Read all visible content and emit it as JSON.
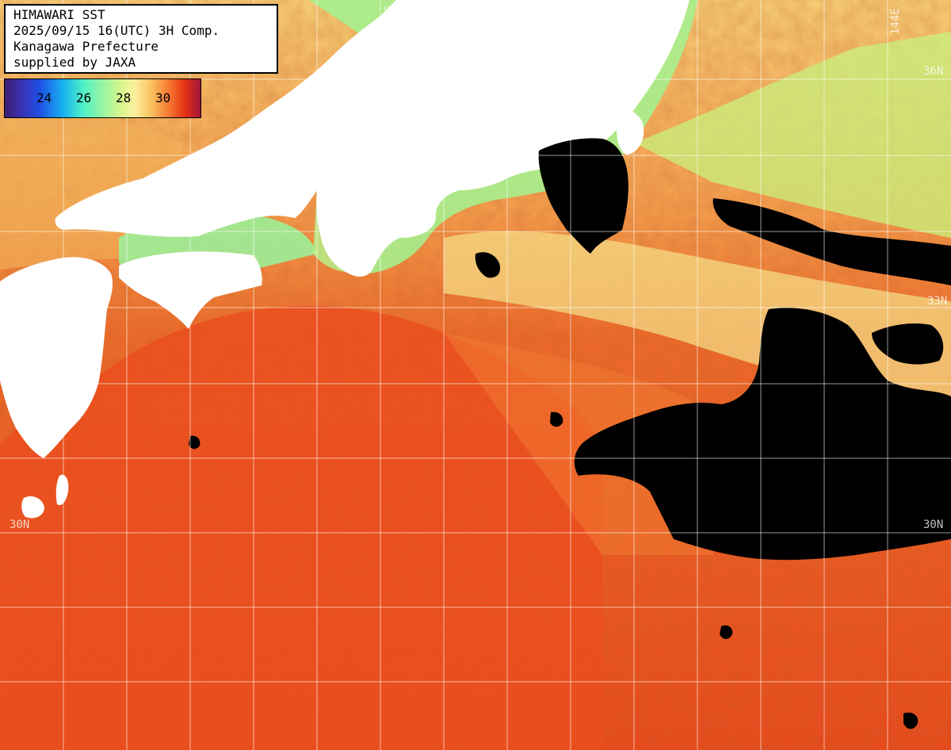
{
  "title": {
    "line1": "HIMAWARI SST",
    "line2": "2025/09/15 16(UTC) 3H Comp.",
    "line3": "Kanagawa Prefecture",
    "line4": "supplied by JAXA"
  },
  "colorbar": {
    "ticks": [
      "24",
      "26",
      "28",
      "30"
    ],
    "min_value": 22,
    "max_value": 32,
    "colors": [
      "#3a1f6e",
      "#1e50e6",
      "#18b4f0",
      "#4ef0c8",
      "#dcf58c",
      "#fac864",
      "#f57832",
      "#e63214",
      "#a0143c"
    ]
  },
  "grid_labels": {
    "lat_36": "36N",
    "lat_33": "33N",
    "lat_30_left": "30N",
    "lat_30_right": "30N",
    "lon_144": "144E",
    "lon_138": "138E"
  },
  "colors": {
    "land": "#ffffff",
    "cloud": "#000000",
    "grid": "#ffffff",
    "warm_sea": "#e8501e",
    "cool_sea": "#a8f08c"
  }
}
